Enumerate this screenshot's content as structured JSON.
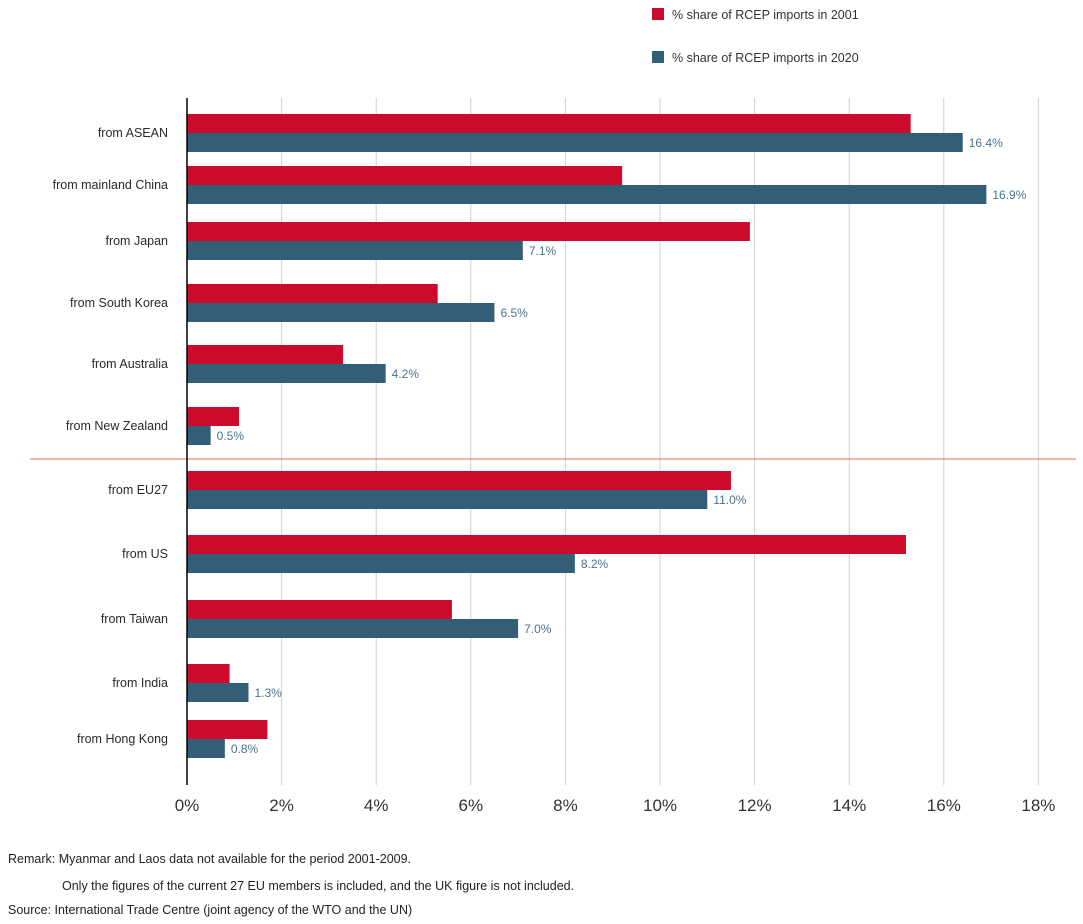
{
  "colors": {
    "s2001": "#cc0a2c",
    "s2020": "#335e78",
    "divider": "#e07040",
    "grid": "#d0d0d0",
    "axis": "#000000",
    "label2020": "#4a7390"
  },
  "chart_data": {
    "type": "bar",
    "orientation": "horizontal",
    "title": "",
    "xlim": [
      0,
      18
    ],
    "xticks": [
      "0%",
      "2%",
      "4%",
      "6%",
      "8%",
      "10%",
      "12%",
      "14%",
      "16%",
      "18%"
    ],
    "categories": [
      "from ASEAN",
      "from mainland China",
      "from Japan",
      "from South Korea",
      "from Australia",
      "from New Zealand",
      "from EU27",
      "from US",
      "from Taiwan",
      "from India",
      "from Hong Kong"
    ],
    "series": [
      {
        "name": "% share of RCEP imports in 2001",
        "values": [
          15.3,
          9.2,
          11.9,
          5.3,
          3.3,
          1.1,
          11.5,
          15.2,
          5.6,
          0.9,
          1.7
        ]
      },
      {
        "name": "% share of RCEP imports in 2020",
        "values": [
          16.4,
          16.9,
          7.1,
          6.5,
          4.2,
          0.5,
          11.0,
          8.2,
          7.0,
          1.3,
          0.8
        ],
        "labels": [
          "16.4%",
          "16.9%",
          "7.1%",
          "6.5%",
          "4.2%",
          "0.5%",
          "11.0%",
          "8.2%",
          "7.0%",
          "1.3%",
          "0.8%"
        ]
      }
    ],
    "divider_after_category": "from New Zealand",
    "grid": true
  },
  "legend": [
    {
      "label": "% share of RCEP imports in 2001"
    },
    {
      "label": "% share of RCEP imports in 2020"
    }
  ],
  "notes": {
    "remark1": "Remark: Myanmar and Laos data not available for the period 2001-2009.",
    "remark2": "Only the figures of the current 27 EU members is included, and the UK figure is not included.",
    "source": "Source: International Trade Centre (joint agency of the WTO and the UN)"
  }
}
